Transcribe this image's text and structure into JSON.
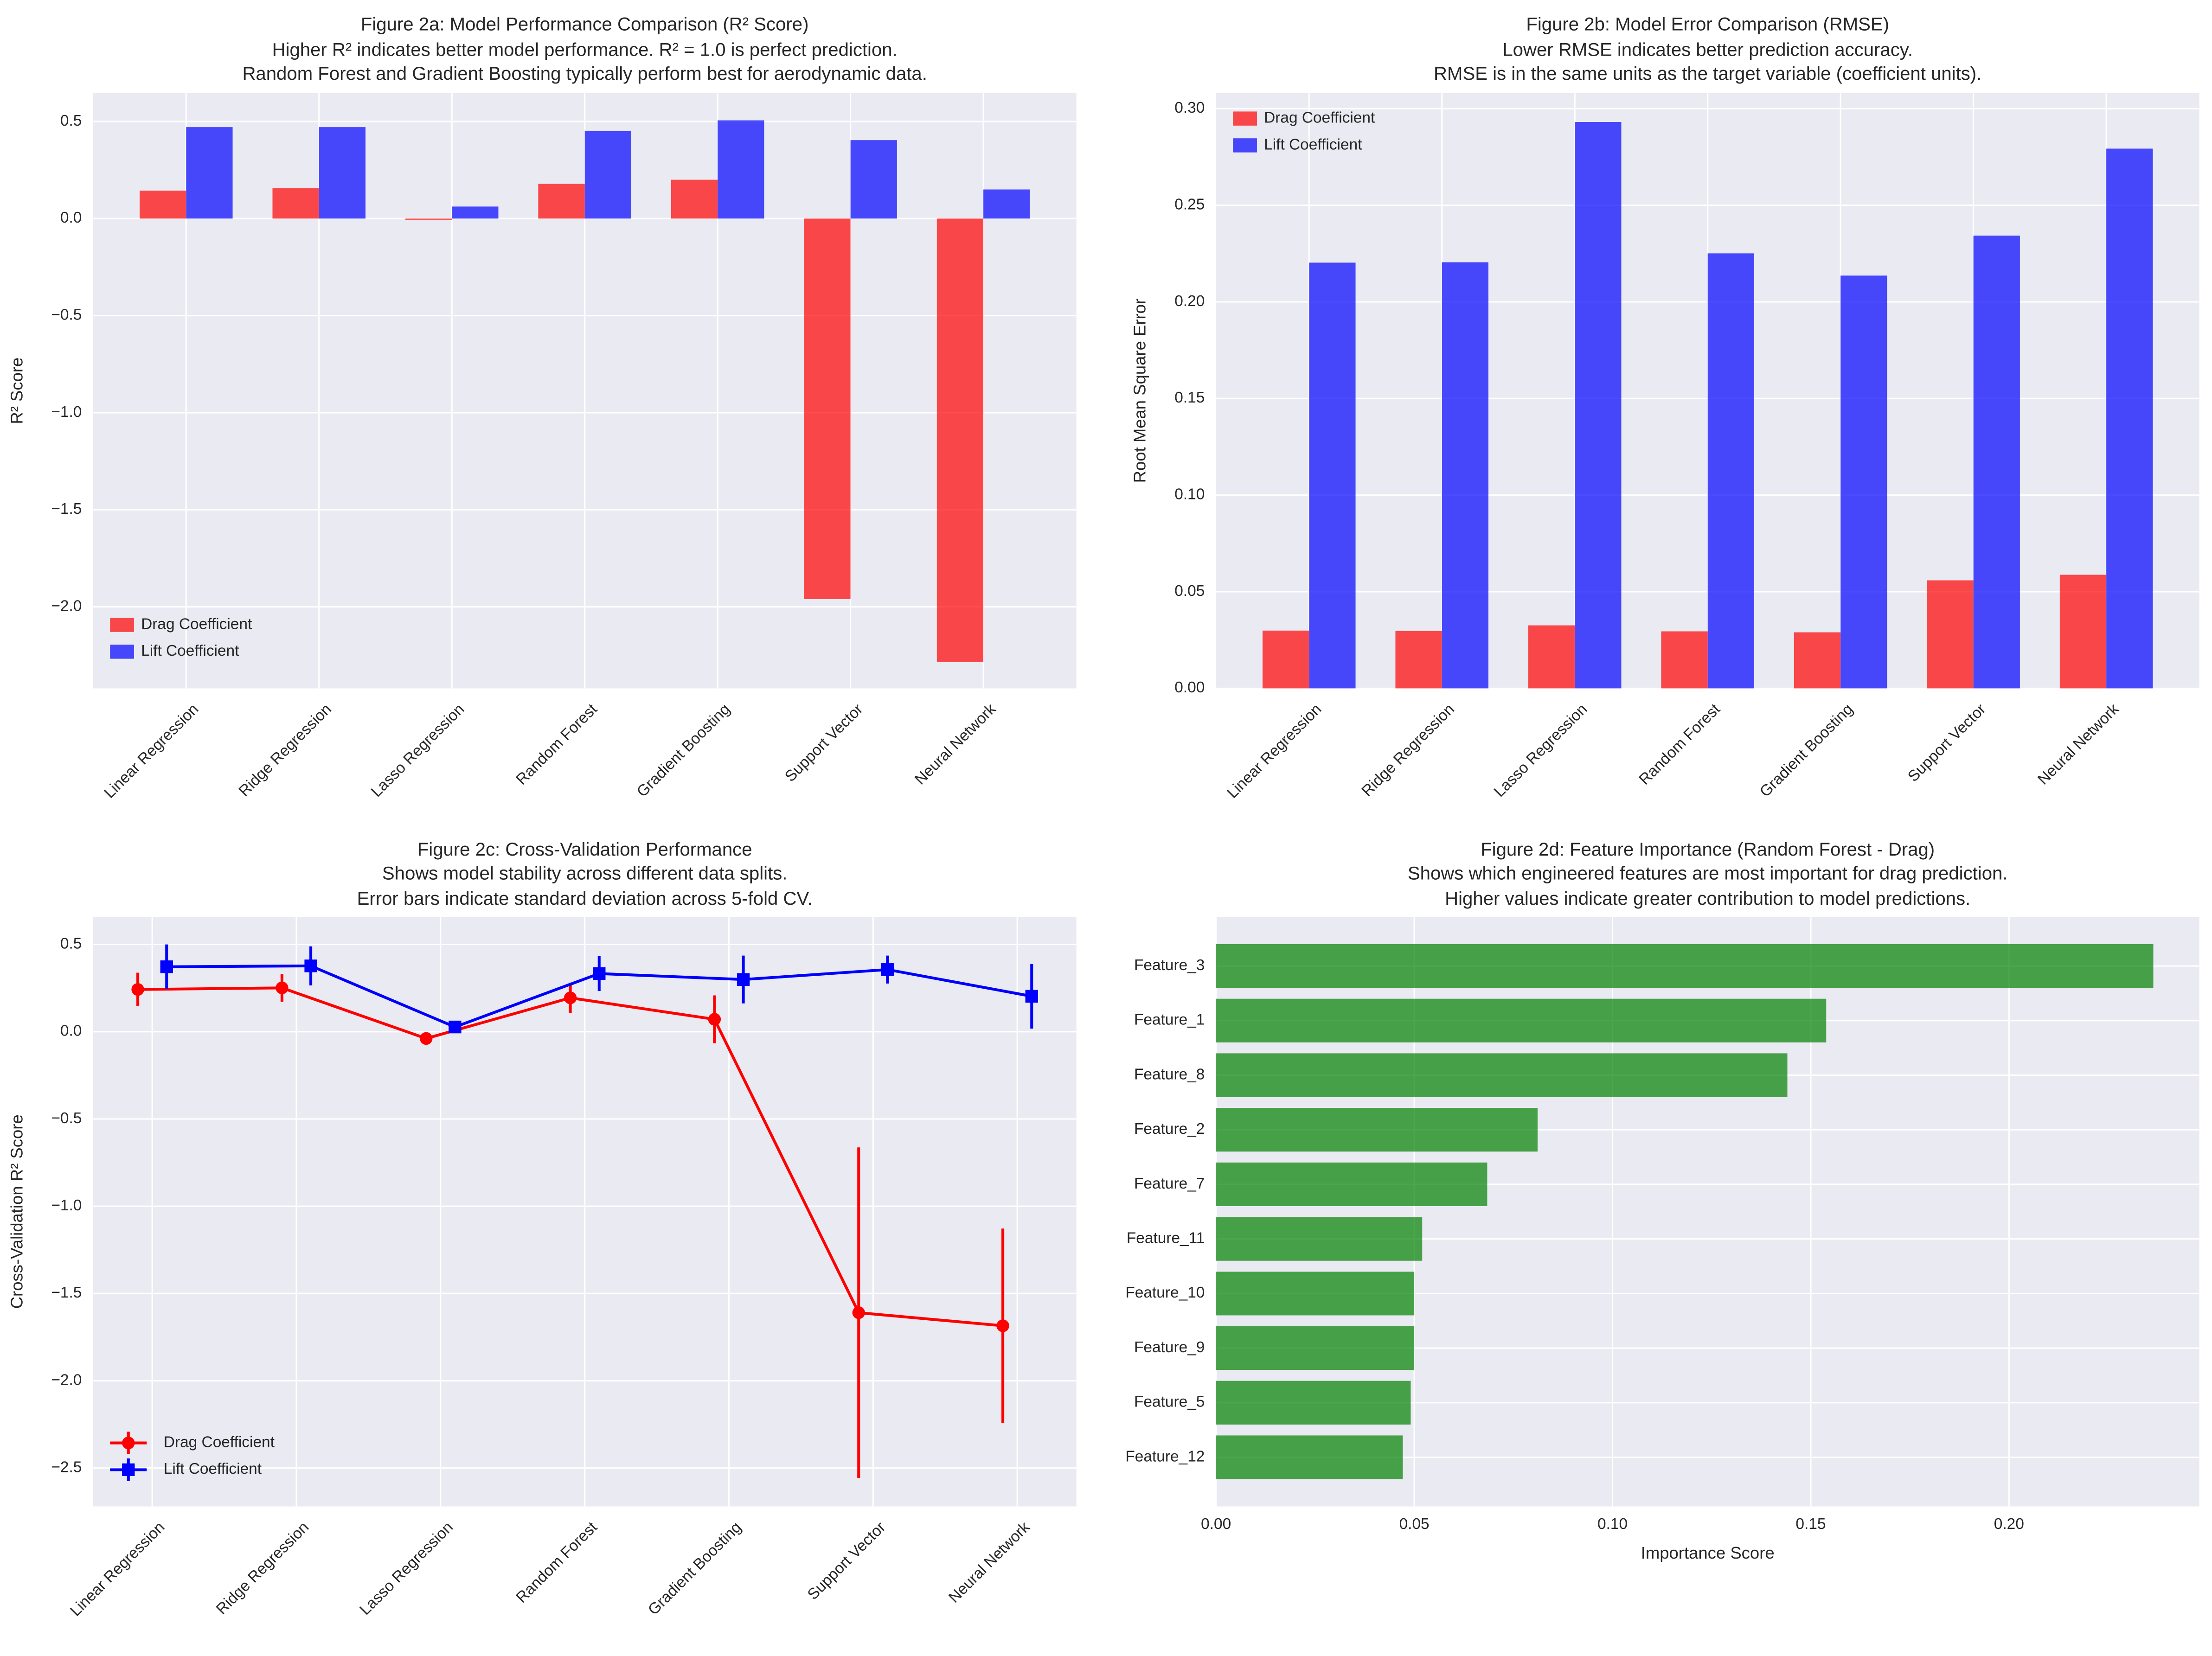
{
  "chart_data": [
    {
      "type": "bar",
      "title": "Figure 2a: Model Performance Comparison (R² Score)",
      "subtitle": [
        "Higher R² indicates better model performance. R² = 1.0 is perfect prediction.",
        "Random Forest and Gradient Boosting typically perform best for aerodynamic data."
      ],
      "xlabel": "",
      "ylabel": "R² Score",
      "categories": [
        "Linear Regression",
        "Ridge Regression",
        "Lasso Regression",
        "Random Forest",
        "Gradient Boosting",
        "Support Vector",
        "Neural Network"
      ],
      "series": [
        {
          "name": "Drag Coefficient",
          "color": "#ff0000",
          "values": [
            0.144,
            0.156,
            -0.006,
            0.179,
            0.2,
            -1.96,
            -2.285
          ]
        },
        {
          "name": "Lift Coefficient",
          "color": "#0000ff",
          "values": [
            0.471,
            0.471,
            0.062,
            0.45,
            0.506,
            0.404,
            0.15
          ]
        }
      ],
      "ylim": [
        -2.42,
        0.646
      ],
      "yticks": [
        -2.0,
        -1.5,
        -1.0,
        -0.5,
        0.0,
        0.5
      ],
      "ytick_labels": [
        "−2.0",
        "−1.5",
        "−1.0",
        "−0.5",
        "0.0",
        "0.5"
      ],
      "grid": true,
      "legend": "lower left"
    },
    {
      "type": "bar",
      "title": "Figure 2b: Model Error Comparison (RMSE)",
      "subtitle": [
        "Lower RMSE indicates better prediction accuracy.",
        "RMSE is in the same units as the target variable (coefficient units)."
      ],
      "xlabel": "",
      "ylabel": "Root Mean Square Error",
      "categories": [
        "Linear Regression",
        "Ridge Regression",
        "Lasso Regression",
        "Random Forest",
        "Gradient Boosting",
        "Support Vector",
        "Neural Network"
      ],
      "series": [
        {
          "name": "Drag Coefficient",
          "color": "#ff0000",
          "values": [
            0.0299,
            0.0297,
            0.0326,
            0.0295,
            0.029,
            0.0559,
            0.0588
          ]
        },
        {
          "name": "Lift Coefficient",
          "color": "#0000ff",
          "values": [
            0.2203,
            0.2205,
            0.2931,
            0.2251,
            0.2136,
            0.2343,
            0.2793
          ]
        }
      ],
      "ylim": [
        0,
        0.308
      ],
      "yticks": [
        0,
        0.05,
        0.1,
        0.15,
        0.2,
        0.25,
        0.3
      ],
      "ytick_labels": [
        "0.00",
        "0.05",
        "0.10",
        "0.15",
        "0.20",
        "0.25",
        "0.30"
      ],
      "grid": true,
      "legend": "upper left"
    },
    {
      "type": "line",
      "title": "Figure 2c: Cross-Validation Performance",
      "subtitle": [
        "Shows model stability across different data splits.",
        "Error bars indicate standard deviation across 5-fold CV."
      ],
      "xlabel": "",
      "ylabel": "Cross-Validation R² Score",
      "categories": [
        "Linear Regression",
        "Ridge Regression",
        "Lasso Regression",
        "Random Forest",
        "Gradient Boosting",
        "Support Vector",
        "Neural Network"
      ],
      "series": [
        {
          "name": "Drag Coefficient",
          "color": "#ff0000",
          "marker": "circle",
          "values": [
            0.242,
            0.251,
            -0.039,
            0.194,
            0.071,
            -1.61,
            -1.685
          ],
          "errors": [
            0.096,
            0.08,
            0.02,
            0.087,
            0.137,
            0.947,
            0.557
          ]
        },
        {
          "name": "Lift Coefficient",
          "color": "#0000ff",
          "marker": "square",
          "values": [
            0.372,
            0.377,
            0.027,
            0.333,
            0.299,
            0.356,
            0.203
          ],
          "errors": [
            0.128,
            0.112,
            0.02,
            0.1,
            0.137,
            0.08,
            0.185
          ]
        }
      ],
      "ylim": [
        -2.72,
        0.658
      ],
      "yticks": [
        -2.5,
        -2.0,
        -1.5,
        -1.0,
        -0.5,
        0.0,
        0.5
      ],
      "ytick_labels": [
        "−2.5",
        "−2.0",
        "−1.5",
        "−1.0",
        "−0.5",
        "0.0",
        "0.5"
      ],
      "grid": true,
      "legend": "lower left"
    },
    {
      "type": "barh",
      "title": "Figure 2d: Feature Importance (Random Forest - Drag)",
      "subtitle": [
        "Shows which engineered features are most important for drag prediction.",
        "Higher values indicate greater contribution to model predictions."
      ],
      "xlabel": "Importance Score",
      "ylabel": "",
      "categories": [
        "Feature_3",
        "Feature_1",
        "Feature_8",
        "Feature_2",
        "Feature_7",
        "Feature_11",
        "Feature_10",
        "Feature_9",
        "Feature_5",
        "Feature_12"
      ],
      "values": [
        0.2364,
        0.1539,
        0.1441,
        0.0811,
        0.0684,
        0.052,
        0.05,
        0.05,
        0.0491,
        0.0471
      ],
      "color": "#008000",
      "xlim": [
        0,
        0.248
      ],
      "xticks": [
        0,
        0.05,
        0.1,
        0.15,
        0.2
      ],
      "xtick_labels": [
        "0.00",
        "0.05",
        "0.10",
        "0.15",
        "0.20"
      ],
      "grid": true
    }
  ]
}
